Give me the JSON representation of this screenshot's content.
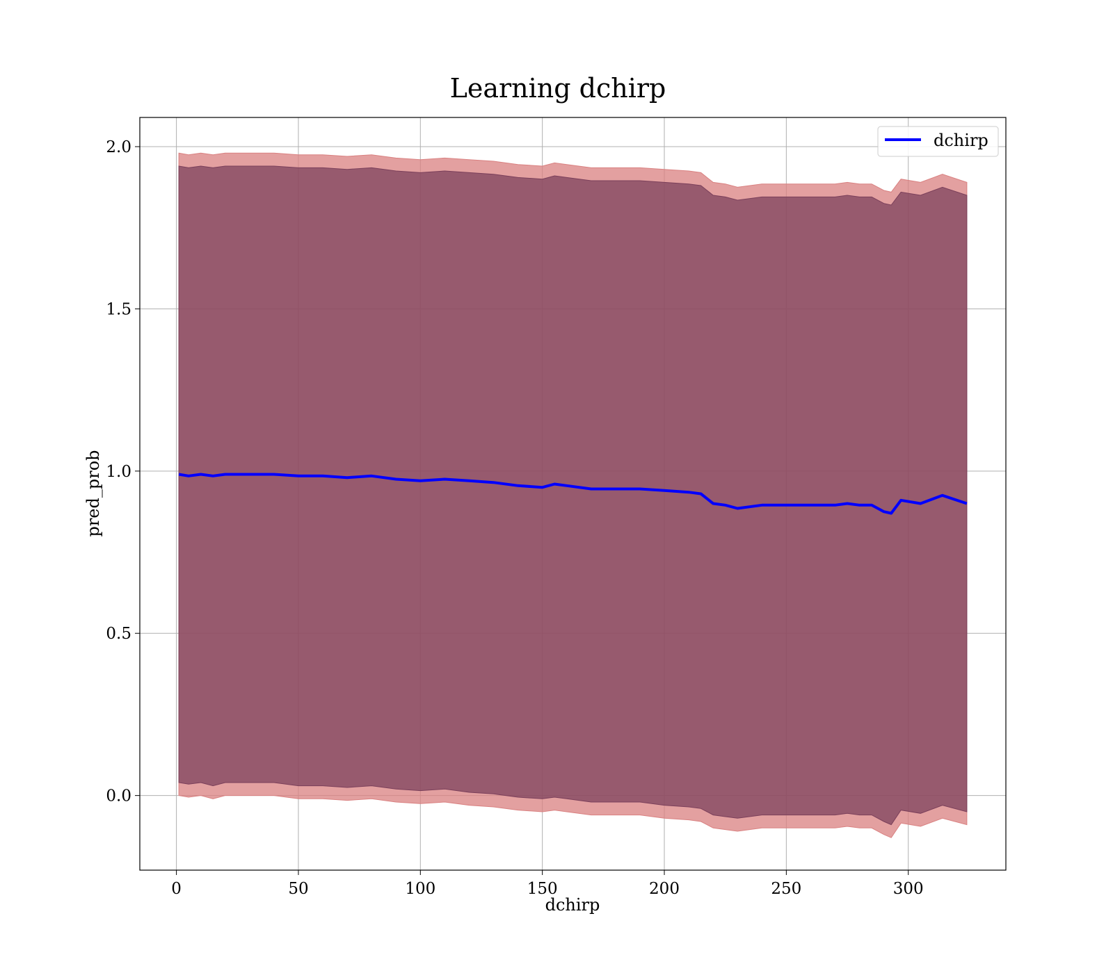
{
  "chart_data": {
    "type": "line",
    "title": "Learning dchirp",
    "xlabel": "dchirp",
    "ylabel": "pred_prob",
    "xlim": [
      -15,
      340
    ],
    "ylim": [
      -0.23,
      2.09
    ],
    "xticks": [
      0,
      50,
      100,
      150,
      200,
      250,
      300
    ],
    "yticks": [
      0.0,
      0.5,
      1.0,
      1.5,
      2.0
    ],
    "xtick_labels": [
      "0",
      "50",
      "100",
      "150",
      "200",
      "250",
      "300"
    ],
    "ytick_labels": [
      "0.0",
      "0.5",
      "1.0",
      "1.5",
      "2.0"
    ],
    "grid": true,
    "legend": {
      "position": "top-right",
      "entries": [
        "dchirp"
      ]
    },
    "series": [
      {
        "name": "dchirp",
        "color": "#0000ff",
        "x": [
          1,
          5,
          10,
          15,
          20,
          30,
          40,
          50,
          60,
          70,
          80,
          90,
          100,
          110,
          120,
          130,
          140,
          150,
          155,
          160,
          170,
          180,
          190,
          200,
          210,
          215,
          220,
          225,
          230,
          240,
          250,
          260,
          270,
          275,
          280,
          285,
          290,
          293,
          297,
          305,
          314,
          324
        ],
        "values": [
          0.99,
          0.985,
          0.99,
          0.985,
          0.99,
          0.99,
          0.99,
          0.985,
          0.985,
          0.98,
          0.985,
          0.975,
          0.97,
          0.975,
          0.97,
          0.965,
          0.955,
          0.95,
          0.96,
          0.955,
          0.945,
          0.945,
          0.945,
          0.94,
          0.935,
          0.93,
          0.9,
          0.895,
          0.885,
          0.895,
          0.895,
          0.895,
          0.895,
          0.9,
          0.895,
          0.895,
          0.875,
          0.87,
          0.91,
          0.9,
          0.925,
          0.9
        ]
      }
    ],
    "bands": [
      {
        "color": "#d98080",
        "opacity": 0.75,
        "lower": [
          0.0,
          -0.005,
          0.0,
          -0.01,
          0.0,
          0.0,
          0.0,
          -0.01,
          -0.01,
          -0.015,
          -0.01,
          -0.02,
          -0.025,
          -0.02,
          -0.03,
          -0.035,
          -0.045,
          -0.05,
          -0.045,
          -0.05,
          -0.06,
          -0.06,
          -0.06,
          -0.07,
          -0.075,
          -0.08,
          -0.1,
          -0.105,
          -0.11,
          -0.1,
          -0.1,
          -0.1,
          -0.1,
          -0.095,
          -0.1,
          -0.1,
          -0.12,
          -0.13,
          -0.085,
          -0.095,
          -0.07,
          -0.09
        ],
        "upper": [
          1.98,
          1.975,
          1.98,
          1.975,
          1.98,
          1.98,
          1.98,
          1.975,
          1.975,
          1.97,
          1.975,
          1.965,
          1.96,
          1.965,
          1.96,
          1.955,
          1.945,
          1.94,
          1.95,
          1.945,
          1.935,
          1.935,
          1.935,
          1.93,
          1.925,
          1.92,
          1.89,
          1.885,
          1.875,
          1.885,
          1.885,
          1.885,
          1.885,
          1.89,
          1.885,
          1.885,
          1.865,
          1.86,
          1.9,
          1.89,
          1.915,
          1.89
        ]
      },
      {
        "color": "#7a3f5a",
        "opacity": 0.72,
        "lower": [
          0.04,
          0.035,
          0.04,
          0.03,
          0.04,
          0.04,
          0.04,
          0.03,
          0.03,
          0.025,
          0.03,
          0.02,
          0.015,
          0.02,
          0.01,
          0.005,
          -0.005,
          -0.01,
          -0.005,
          -0.01,
          -0.02,
          -0.02,
          -0.02,
          -0.03,
          -0.035,
          -0.04,
          -0.06,
          -0.065,
          -0.07,
          -0.06,
          -0.06,
          -0.06,
          -0.06,
          -0.055,
          -0.06,
          -0.06,
          -0.08,
          -0.09,
          -0.045,
          -0.055,
          -0.03,
          -0.05
        ],
        "upper": [
          1.94,
          1.935,
          1.94,
          1.935,
          1.94,
          1.94,
          1.94,
          1.935,
          1.935,
          1.93,
          1.935,
          1.925,
          1.92,
          1.925,
          1.92,
          1.915,
          1.905,
          1.9,
          1.91,
          1.905,
          1.895,
          1.895,
          1.895,
          1.89,
          1.885,
          1.88,
          1.85,
          1.845,
          1.835,
          1.845,
          1.845,
          1.845,
          1.845,
          1.85,
          1.845,
          1.845,
          1.825,
          1.82,
          1.86,
          1.85,
          1.875,
          1.85
        ]
      }
    ]
  }
}
